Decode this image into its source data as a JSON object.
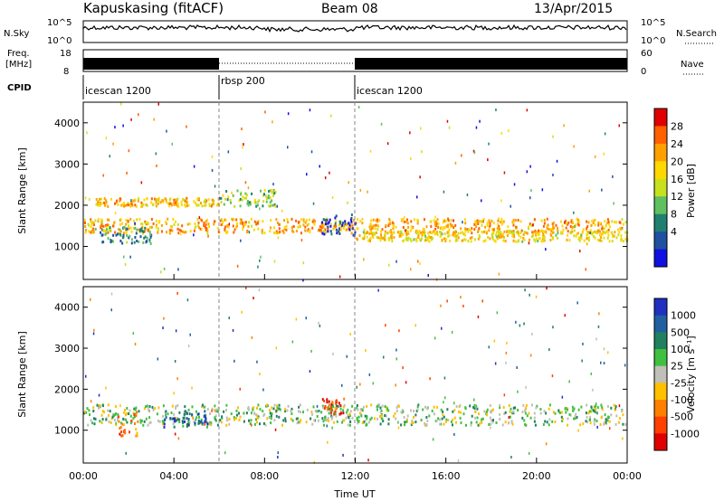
{
  "header": {
    "station": "Kapuskasing (fitACF)",
    "beam": "Beam 08",
    "date": "13/Apr/2015"
  },
  "panels": {
    "noise": {
      "left_label": "N.Sky",
      "left_ticks": [
        "10^5",
        "10^0"
      ],
      "right_label": "N.Search",
      "right_ticks": [
        "10^5",
        "10^0"
      ]
    },
    "freq": {
      "left_label_1": "Freq.",
      "left_label_2": "[MHz]",
      "left_ticks": [
        "18",
        "8"
      ],
      "right_label": "Nave",
      "right_ticks": [
        "60",
        "0"
      ]
    },
    "cpid": {
      "label": "CPID",
      "segments": [
        "icescan 1200",
        "rbsp 200",
        "icescan 1200"
      ]
    }
  },
  "colorbars": {
    "power": {
      "label": "Power [dB]",
      "ticks": [
        "28",
        "24",
        "20",
        "16",
        "12",
        "8",
        "4"
      ],
      "colors": [
        "#e00000",
        "#ff6000",
        "#ffa000",
        "#ffd800",
        "#c8e020",
        "#60c060",
        "#208070",
        "#2050a0",
        "#1010e0"
      ]
    },
    "velocity": {
      "label": "Velocity [m s⁻¹]",
      "ticks": [
        "1000",
        "500",
        "100",
        "25",
        "-25",
        "-100",
        "-500",
        "-1000"
      ],
      "colors": [
        "#2030c0",
        "#2060a0",
        "#208060",
        "#40c040",
        "#c0c0b8",
        "#ffc000",
        "#ff8000",
        "#ff4000",
        "#e00000"
      ]
    }
  },
  "chart_data": [
    {
      "type": "heatmap",
      "name": "power",
      "ylabel": "Slant Range [km]",
      "xlabel": "Time UT",
      "xlim": [
        0,
        24
      ],
      "ylim": [
        200,
        4500
      ],
      "yticks": [
        1000,
        2000,
        3000,
        4000
      ],
      "xticks": [
        "00:00",
        "04:00",
        "08:00",
        "12:00",
        "16:00",
        "20:00",
        "00:00"
      ],
      "features": [
        {
          "t0": 0.0,
          "t1": 24.0,
          "r0": 1350,
          "r1": 1700,
          "level": 0.3
        },
        {
          "t0": 0.5,
          "t1": 3.0,
          "r0": 1100,
          "r1": 1500,
          "level": 0.7
        },
        {
          "t0": 6.0,
          "t1": 8.5,
          "r0": 2000,
          "r1": 2400,
          "level": 0.55
        },
        {
          "t0": 10.5,
          "t1": 12.0,
          "r0": 1300,
          "r1": 1800,
          "level": 0.85
        },
        {
          "t0": 12.0,
          "t1": 24.0,
          "r0": 1150,
          "r1": 1400,
          "level": 0.4
        },
        {
          "t0": 0.5,
          "t1": 6.0,
          "r0": 2000,
          "r1": 2200,
          "level": 0.35
        }
      ]
    },
    {
      "type": "heatmap",
      "name": "velocity",
      "ylabel": "Slant Range [km]",
      "xlabel": "Time UT",
      "xlim": [
        0,
        24
      ],
      "ylim": [
        200,
        4500
      ],
      "yticks": [
        1000,
        2000,
        3000,
        4000
      ],
      "xticks": [
        "00:00",
        "04:00",
        "08:00",
        "12:00",
        "16:00",
        "20:00",
        "00:00"
      ],
      "features": [
        {
          "t0": 0.0,
          "t1": 24.0,
          "r0": 1150,
          "r1": 1650,
          "level": 0.45
        },
        {
          "t0": 1.5,
          "t1": 2.5,
          "r0": 800,
          "r1": 1500,
          "level": 0.75
        },
        {
          "t0": 10.5,
          "t1": 11.5,
          "r0": 1400,
          "r1": 1800,
          "level": 0.85
        },
        {
          "t0": 3.5,
          "t1": 5.5,
          "r0": 1100,
          "r1": 1500,
          "level": 0.2
        }
      ]
    }
  ],
  "axis": {
    "xlabel": "Time UT"
  }
}
